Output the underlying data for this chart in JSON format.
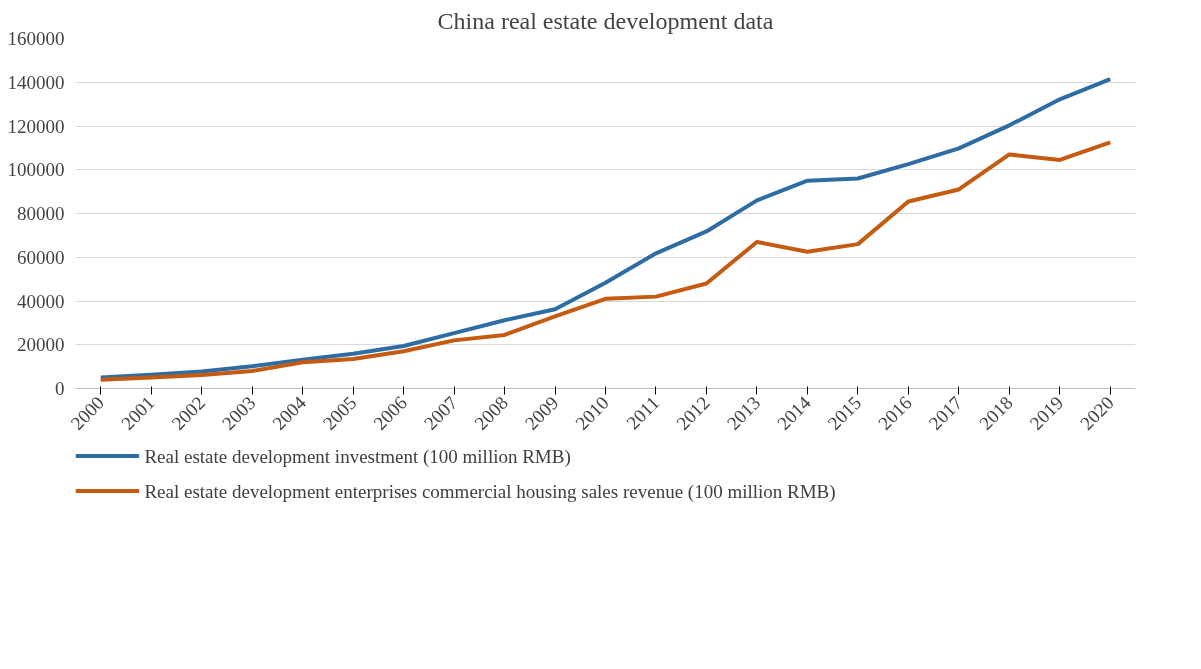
{
  "chart_data": {
    "type": "line",
    "title": "China real estate development data",
    "categories": [
      "2000",
      "2001",
      "2002",
      "2003",
      "2004",
      "2005",
      "2006",
      "2007",
      "2008",
      "2009",
      "2010",
      "2011",
      "2012",
      "2013",
      "2014",
      "2015",
      "2016",
      "2017",
      "2018",
      "2019",
      "2020"
    ],
    "series": [
      {
        "name": "Real estate development investment (100 million RMB)",
        "color": "#2e6da4",
        "values": [
          5000,
          6300,
          7800,
          10200,
          13200,
          15900,
          19400,
          25300,
          31200,
          36200,
          48300,
          61800,
          71800,
          86000,
          95000,
          96000,
          102600,
          109800,
          120300,
          132200,
          141400
        ]
      },
      {
        "name": "Real estate development enterprises commercial housing sales revenue (100 million RMB)",
        "color": "#c55a11",
        "values": [
          4000,
          5000,
          6200,
          8000,
          12000,
          13500,
          17000,
          22000,
          24500,
          33000,
          41000,
          42000,
          48000,
          67000,
          62500,
          66000,
          85500,
          91000,
          107000,
          104500,
          112500
        ]
      }
    ],
    "ylim": [
      0,
      160000
    ],
    "yticks": [
      0,
      20000,
      40000,
      60000,
      80000,
      100000,
      120000,
      140000,
      160000
    ],
    "grid": "y",
    "legend": "bottom",
    "marker": "none",
    "line_style": "solid"
  }
}
